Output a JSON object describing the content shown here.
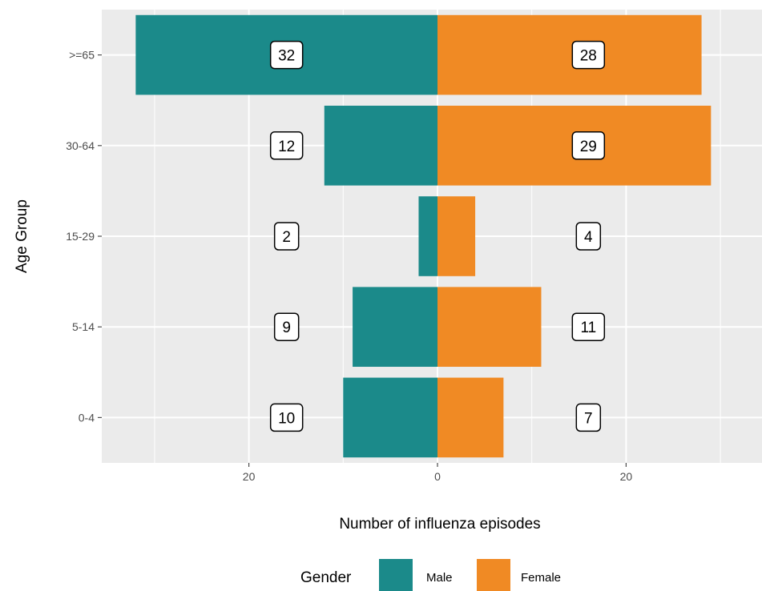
{
  "chart_data": {
    "type": "bar",
    "orientation": "horizontal",
    "layout": "population-pyramid",
    "categories": [
      "0-4",
      "5-14",
      "15-29",
      "30-64",
      ">=65"
    ],
    "series": [
      {
        "name": "Male",
        "values": [
          10,
          9,
          2,
          12,
          32
        ],
        "color": "#1b8a8a",
        "direction": "left"
      },
      {
        "name": "Female",
        "values": [
          7,
          11,
          4,
          29,
          28
        ],
        "color": "#f08a24",
        "direction": "right"
      }
    ],
    "xlabel": "Number of influenza episodes",
    "ylabel": "Age Group",
    "xlim": [
      -35,
      35
    ],
    "x_ticks": [
      -20,
      0,
      20
    ],
    "x_tick_labels": [
      "20",
      "0",
      "20"
    ],
    "grid": true,
    "legend": {
      "title": "Gender",
      "position": "bottom"
    },
    "colors": {
      "panel_background": "#ebebeb",
      "grid": "#ffffff"
    }
  }
}
